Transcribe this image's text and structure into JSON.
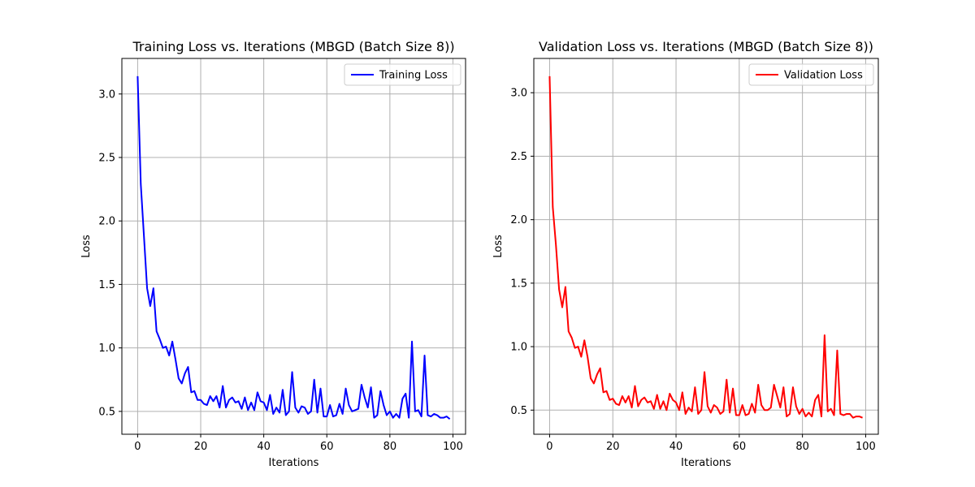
{
  "chart_data": [
    {
      "type": "line",
      "title": "Training Loss vs. Iterations (MBGD (Batch Size 8))",
      "xlabel": "Iterations",
      "ylabel": "Loss",
      "xlim": [
        -5,
        104
      ],
      "ylim": [
        0.32,
        3.28
      ],
      "xticks": [
        0,
        20,
        40,
        60,
        80,
        100
      ],
      "yticks": [
        0.5,
        1.0,
        1.5,
        2.0,
        2.5,
        3.0
      ],
      "grid": true,
      "legend_position": "top-right",
      "series": [
        {
          "name": "Training Loss",
          "color": "#0000ff",
          "x": [
            0,
            1,
            2,
            3,
            4,
            5,
            6,
            7,
            8,
            9,
            10,
            11,
            12,
            13,
            14,
            15,
            16,
            17,
            18,
            19,
            20,
            21,
            22,
            23,
            24,
            25,
            26,
            27,
            28,
            29,
            30,
            31,
            32,
            33,
            34,
            35,
            36,
            37,
            38,
            39,
            40,
            41,
            42,
            43,
            44,
            45,
            46,
            47,
            48,
            49,
            50,
            51,
            52,
            53,
            54,
            55,
            56,
            57,
            58,
            59,
            60,
            61,
            62,
            63,
            64,
            65,
            66,
            67,
            68,
            69,
            70,
            71,
            72,
            73,
            74,
            75,
            76,
            77,
            78,
            79,
            80,
            81,
            82,
            83,
            84,
            85,
            86,
            87,
            88,
            89,
            90,
            91,
            92,
            93,
            94,
            95,
            96,
            97,
            98,
            99
          ],
          "values": [
            3.14,
            2.29,
            1.88,
            1.47,
            1.33,
            1.47,
            1.13,
            1.07,
            1.0,
            1.01,
            0.94,
            1.05,
            0.91,
            0.76,
            0.72,
            0.8,
            0.85,
            0.65,
            0.66,
            0.59,
            0.59,
            0.56,
            0.55,
            0.62,
            0.58,
            0.62,
            0.53,
            0.7,
            0.53,
            0.59,
            0.61,
            0.57,
            0.58,
            0.52,
            0.61,
            0.51,
            0.57,
            0.51,
            0.65,
            0.58,
            0.57,
            0.51,
            0.63,
            0.48,
            0.53,
            0.49,
            0.67,
            0.47,
            0.5,
            0.81,
            0.53,
            0.49,
            0.54,
            0.53,
            0.48,
            0.5,
            0.75,
            0.49,
            0.68,
            0.46,
            0.46,
            0.55,
            0.46,
            0.47,
            0.56,
            0.48,
            0.68,
            0.55,
            0.5,
            0.51,
            0.52,
            0.71,
            0.61,
            0.53,
            0.69,
            0.45,
            0.47,
            0.66,
            0.55,
            0.47,
            0.5,
            0.45,
            0.48,
            0.45,
            0.6,
            0.64,
            0.45,
            1.05,
            0.5,
            0.51,
            0.46,
            0.94,
            0.47,
            0.46,
            0.48,
            0.47,
            0.45,
            0.45,
            0.46,
            0.44
          ]
        }
      ]
    },
    {
      "type": "line",
      "title": "Validation Loss vs. Iterations (MBGD (Batch Size 8))",
      "xlabel": "Iterations",
      "ylabel": "Loss",
      "xlim": [
        -5,
        104
      ],
      "ylim": [
        0.31,
        3.27
      ],
      "xticks": [
        0,
        20,
        40,
        60,
        80,
        100
      ],
      "yticks": [
        0.5,
        1.0,
        1.5,
        2.0,
        2.5,
        3.0
      ],
      "grid": true,
      "legend_position": "top-right",
      "series": [
        {
          "name": "Validation Loss",
          "color": "#ff0000",
          "x": [
            0,
            1,
            2,
            3,
            4,
            5,
            6,
            7,
            8,
            9,
            10,
            11,
            12,
            13,
            14,
            15,
            16,
            17,
            18,
            19,
            20,
            21,
            22,
            23,
            24,
            25,
            26,
            27,
            28,
            29,
            30,
            31,
            32,
            33,
            34,
            35,
            36,
            37,
            38,
            39,
            40,
            41,
            42,
            43,
            44,
            45,
            46,
            47,
            48,
            49,
            50,
            51,
            52,
            53,
            54,
            55,
            56,
            57,
            58,
            59,
            60,
            61,
            62,
            63,
            64,
            65,
            66,
            67,
            68,
            69,
            70,
            71,
            72,
            73,
            74,
            75,
            76,
            77,
            78,
            79,
            80,
            81,
            82,
            83,
            84,
            85,
            86,
            87,
            88,
            89,
            90,
            91,
            92,
            93,
            94,
            95,
            96,
            97,
            98,
            99
          ],
          "values": [
            3.13,
            2.1,
            1.8,
            1.45,
            1.31,
            1.47,
            1.12,
            1.07,
            0.99,
            1.0,
            0.92,
            1.05,
            0.92,
            0.75,
            0.71,
            0.78,
            0.83,
            0.64,
            0.65,
            0.58,
            0.59,
            0.55,
            0.54,
            0.61,
            0.56,
            0.61,
            0.52,
            0.69,
            0.53,
            0.58,
            0.6,
            0.56,
            0.57,
            0.51,
            0.62,
            0.51,
            0.57,
            0.5,
            0.63,
            0.58,
            0.56,
            0.5,
            0.64,
            0.47,
            0.52,
            0.49,
            0.68,
            0.47,
            0.5,
            0.8,
            0.53,
            0.48,
            0.54,
            0.52,
            0.47,
            0.49,
            0.74,
            0.48,
            0.67,
            0.46,
            0.46,
            0.54,
            0.46,
            0.47,
            0.55,
            0.48,
            0.7,
            0.54,
            0.5,
            0.5,
            0.52,
            0.7,
            0.61,
            0.52,
            0.68,
            0.45,
            0.47,
            0.68,
            0.53,
            0.47,
            0.51,
            0.45,
            0.48,
            0.45,
            0.58,
            0.62,
            0.45,
            1.09,
            0.49,
            0.51,
            0.46,
            0.97,
            0.47,
            0.46,
            0.47,
            0.47,
            0.44,
            0.45,
            0.45,
            0.44
          ]
        }
      ]
    }
  ]
}
